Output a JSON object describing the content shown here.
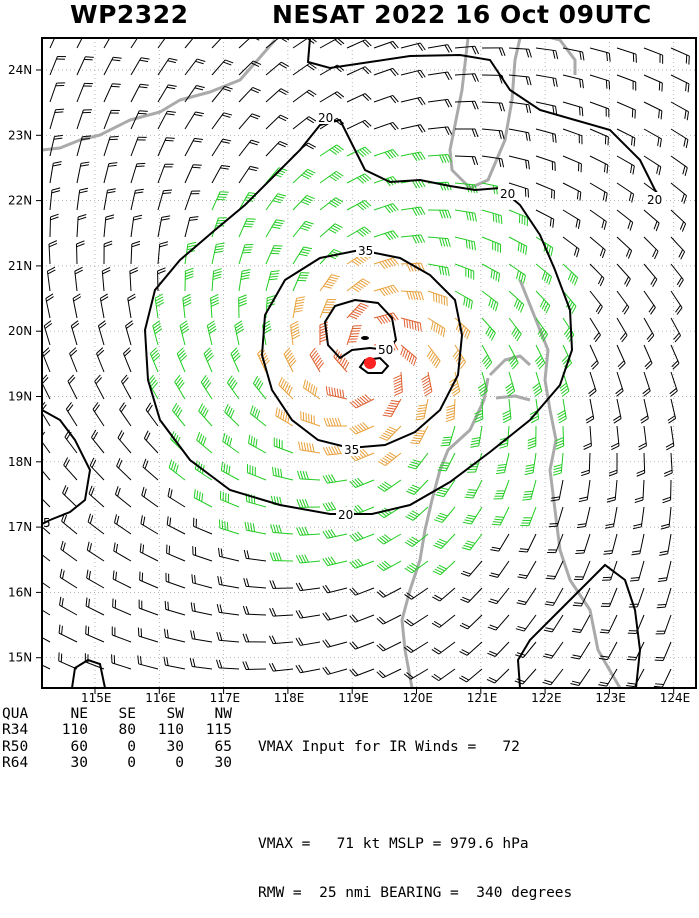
{
  "header": {
    "storm_id": "WP2322",
    "title": "NESAT 2022 16 Oct 09UTC"
  },
  "map": {
    "lat_labels": [
      "24N",
      "23N",
      "22N",
      "21N",
      "20N",
      "19N",
      "18N",
      "17N",
      "16N",
      "15N"
    ],
    "lon_labels": [
      "115E",
      "116E",
      "117E",
      "118E",
      "119E",
      "120E",
      "121E",
      "122E",
      "123E",
      "124E"
    ],
    "contour_labels": [
      "20",
      "20",
      "20",
      "20",
      "35",
      "35",
      "50",
      "5"
    ],
    "colors": {
      "below_34kt": "#000000",
      "kt_34_to_50": "#22cc22",
      "kt_50_to_64": "#e8a03a",
      "above_64kt": "#e06030",
      "coastline": "#aaaaaa",
      "center_marker": "#ff2020"
    }
  },
  "radii_table": {
    "headers": [
      "QUA",
      "NE",
      "SE",
      "SW",
      "NW"
    ],
    "rows": [
      {
        "label": "R34",
        "values": [
          "110",
          "80",
          "110",
          "115"
        ]
      },
      {
        "label": "R50",
        "values": [
          "60",
          "0",
          "30",
          "65"
        ]
      },
      {
        "label": "R64",
        "values": [
          "30",
          "0",
          "0",
          "30"
        ]
      }
    ]
  },
  "info": {
    "line1": "VMAX Input for IR Winds =   72",
    "line2": "",
    "line3": "VMAX =   71 kt MSLP = 979.6 hPa",
    "line4": "RMW =  25 nmi BEARING =  340 degrees"
  }
}
